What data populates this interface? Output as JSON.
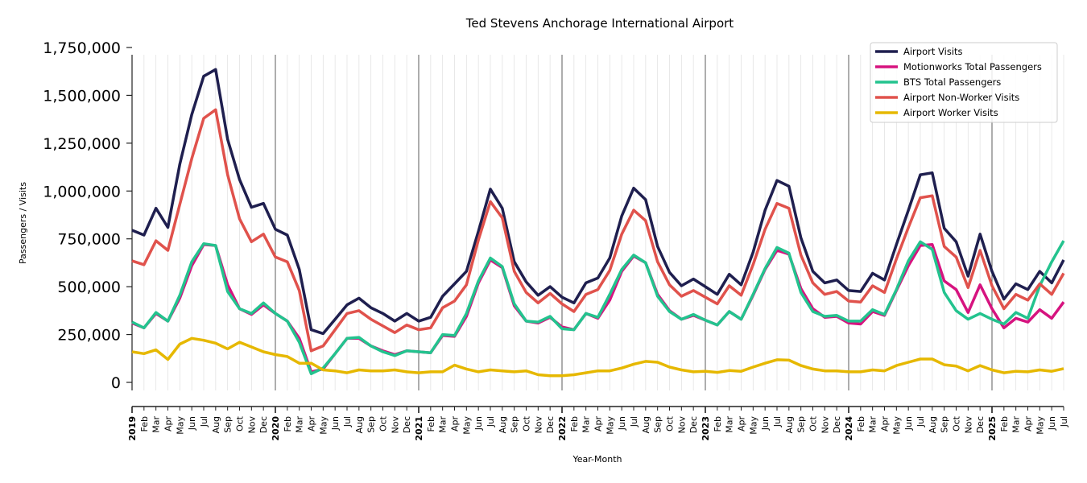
{
  "chart_data": {
    "type": "line",
    "title": "Ted Stevens Anchorage International Airport",
    "xlabel": "Year-Month",
    "ylabel": "Passengers / Visits",
    "ylim": [
      0,
      1750000
    ],
    "y_ticks": [
      0,
      250000,
      500000,
      750000,
      1000000,
      1250000,
      1500000,
      1750000
    ],
    "y_tick_labels": [
      "0",
      "250,000",
      "500,000",
      "750,000",
      "1,000,000",
      "1,250,000",
      "1,500,000",
      "1,750,000"
    ],
    "x_tick_labels": [
      "2019",
      "Feb",
      "Mar",
      "Apr",
      "May",
      "Jun",
      "Jul",
      "Aug",
      "Sep",
      "Oct",
      "Nov",
      "Dec",
      "2020",
      "Feb",
      "Mar",
      "Apr",
      "May",
      "Jun",
      "Jul",
      "Aug",
      "Sep",
      "Oct",
      "Nov",
      "Dec",
      "2021",
      "Feb",
      "Mar",
      "Apr",
      "May",
      "Jun",
      "Jul",
      "Aug",
      "Sep",
      "Oct",
      "Nov",
      "Dec",
      "2022",
      "Feb",
      "Mar",
      "Apr",
      "May",
      "Jun",
      "Jul",
      "Aug",
      "Sep",
      "Oct",
      "Nov",
      "Dec",
      "2023",
      "Feb",
      "Mar",
      "Apr",
      "May",
      "Jun",
      "Jul",
      "Aug",
      "Sep",
      "Oct",
      "Nov",
      "Dec",
      "2024",
      "Feb",
      "Mar",
      "Apr",
      "May",
      "Jun",
      "Jul",
      "Aug",
      "Sep",
      "Oct",
      "Nov",
      "Dec",
      "2025",
      "Feb",
      "Mar",
      "Apr",
      "May",
      "Jun",
      "Jul"
    ],
    "grid": "vertical monthly, year separators",
    "legend_position": "top-right",
    "series": [
      {
        "name": "Airport Visits",
        "color": "#1f1f4f",
        "values": [
          795000,
          770000,
          910000,
          810000,
          1140000,
          1400000,
          1600000,
          1635000,
          1270000,
          1060000,
          915000,
          935000,
          800000,
          770000,
          590000,
          275000,
          255000,
          330000,
          405000,
          440000,
          390000,
          360000,
          320000,
          360000,
          320000,
          340000,
          450000,
          515000,
          580000,
          790000,
          1010000,
          910000,
          630000,
          525000,
          455000,
          500000,
          445000,
          415000,
          520000,
          545000,
          650000,
          870000,
          1015000,
          955000,
          710000,
          575000,
          505000,
          540000,
          500000,
          460000,
          565000,
          510000,
          680000,
          900000,
          1055000,
          1025000,
          755000,
          580000,
          520000,
          535000,
          480000,
          475000,
          570000,
          535000,
          720000,
          900000,
          1085000,
          1095000,
          805000,
          735000,
          555000,
          775000,
          580000,
          435000,
          515000,
          485000,
          580000,
          520000,
          640000
        ]
      },
      {
        "name": "Motionworks Total Passengers",
        "color": "#d6137f",
        "values": [
          310000,
          285000,
          360000,
          320000,
          440000,
          610000,
          720000,
          715000,
          510000,
          385000,
          355000,
          405000,
          360000,
          320000,
          230000,
          55000,
          70000,
          150000,
          230000,
          230000,
          190000,
          165000,
          145000,
          165000,
          160000,
          155000,
          245000,
          240000,
          345000,
          520000,
          640000,
          600000,
          400000,
          320000,
          310000,
          340000,
          290000,
          275000,
          360000,
          335000,
          430000,
          580000,
          660000,
          625000,
          460000,
          375000,
          330000,
          350000,
          325000,
          300000,
          370000,
          330000,
          455000,
          590000,
          690000,
          670000,
          490000,
          385000,
          340000,
          345000,
          310000,
          305000,
          370000,
          350000,
          480000,
          610000,
          715000,
          720000,
          530000,
          485000,
          365000,
          510000,
          385000,
          285000,
          335000,
          315000,
          380000,
          335000,
          420000
        ]
      },
      {
        "name": "BTS Total Passengers",
        "color": "#23c38e",
        "values": [
          315000,
          285000,
          365000,
          320000,
          455000,
          630000,
          725000,
          715000,
          475000,
          385000,
          360000,
          415000,
          360000,
          320000,
          210000,
          45000,
          75000,
          150000,
          230000,
          235000,
          190000,
          160000,
          140000,
          165000,
          160000,
          155000,
          250000,
          245000,
          360000,
          530000,
          650000,
          605000,
          410000,
          320000,
          315000,
          345000,
          280000,
          275000,
          360000,
          340000,
          460000,
          590000,
          665000,
          625000,
          450000,
          370000,
          330000,
          355000,
          325000,
          300000,
          370000,
          330000,
          460000,
          595000,
          705000,
          675000,
          470000,
          370000,
          345000,
          350000,
          320000,
          320000,
          380000,
          355000,
          485000,
          635000,
          735000,
          695000,
          470000,
          375000,
          330000,
          360000,
          330000,
          305000,
          365000,
          335000,
          505000,
          630000,
          740000
        ]
      },
      {
        "name": "Airport Non-Worker Visits",
        "color": "#e0524c",
        "values": [
          635000,
          615000,
          740000,
          690000,
          930000,
          1170000,
          1380000,
          1425000,
          1085000,
          855000,
          735000,
          775000,
          655000,
          630000,
          480000,
          165000,
          190000,
          275000,
          360000,
          375000,
          330000,
          295000,
          260000,
          300000,
          275000,
          285000,
          390000,
          425000,
          510000,
          745000,
          945000,
          860000,
          580000,
          470000,
          415000,
          465000,
          410000,
          370000,
          460000,
          485000,
          585000,
          775000,
          900000,
          845000,
          630000,
          510000,
          450000,
          480000,
          445000,
          410000,
          505000,
          455000,
          615000,
          800000,
          935000,
          910000,
          665000,
          520000,
          460000,
          475000,
          425000,
          420000,
          505000,
          470000,
          645000,
          810000,
          965000,
          975000,
          710000,
          655000,
          495000,
          690000,
          505000,
          385000,
          460000,
          430000,
          515000,
          460000,
          570000
        ]
      },
      {
        "name": "Airport Worker Visits",
        "color": "#e6b800",
        "values": [
          160000,
          150000,
          170000,
          120000,
          200000,
          230000,
          220000,
          205000,
          175000,
          210000,
          185000,
          160000,
          145000,
          135000,
          100000,
          100000,
          65000,
          60000,
          50000,
          65000,
          60000,
          60000,
          65000,
          55000,
          50000,
          55000,
          55000,
          90000,
          70000,
          55000,
          65000,
          60000,
          55000,
          60000,
          40000,
          35000,
          35000,
          40000,
          50000,
          60000,
          60000,
          75000,
          95000,
          110000,
          105000,
          80000,
          65000,
          55000,
          58000,
          52000,
          62000,
          58000,
          80000,
          100000,
          118000,
          116000,
          88000,
          70000,
          60000,
          60000,
          55000,
          55000,
          65000,
          60000,
          88000,
          105000,
          122000,
          122000,
          92000,
          85000,
          60000,
          88000,
          65000,
          50000,
          58000,
          55000,
          65000,
          58000,
          72000
        ]
      }
    ]
  }
}
